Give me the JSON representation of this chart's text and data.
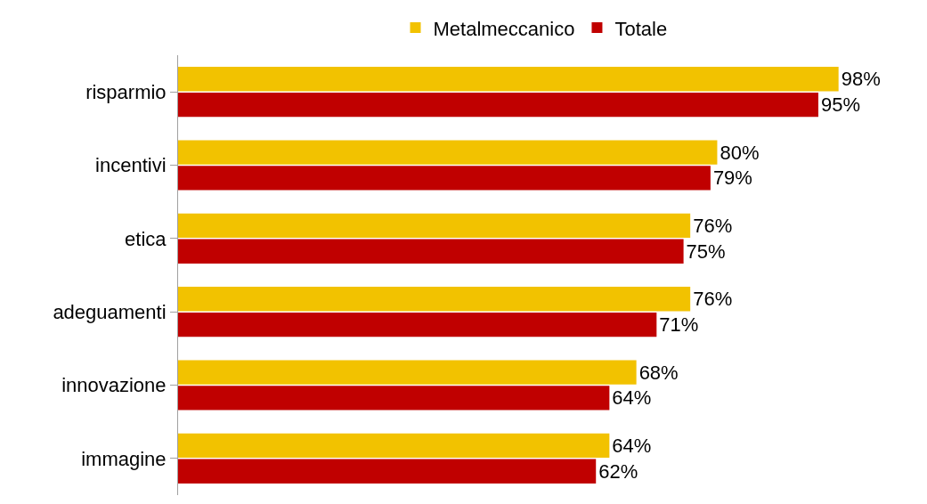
{
  "chart_data": {
    "type": "bar",
    "orientation": "horizontal",
    "categories": [
      "risparmio",
      "incentivi",
      "etica",
      "adeguamenti",
      "innovazione",
      "immagine"
    ],
    "series": [
      {
        "name": "Metalmeccanico",
        "color": "#f2c200",
        "values": [
          98,
          80,
          76,
          76,
          68,
          64
        ],
        "value_labels": [
          "98%",
          "80%",
          "76%",
          "76%",
          "68%",
          "64%"
        ]
      },
      {
        "name": "Totale",
        "color": "#c00000",
        "values": [
          95,
          79,
          75,
          71,
          64,
          62
        ],
        "value_labels": [
          "95%",
          "79%",
          "75%",
          "71%",
          "64%",
          "62%"
        ]
      }
    ],
    "legend": "top"
  }
}
